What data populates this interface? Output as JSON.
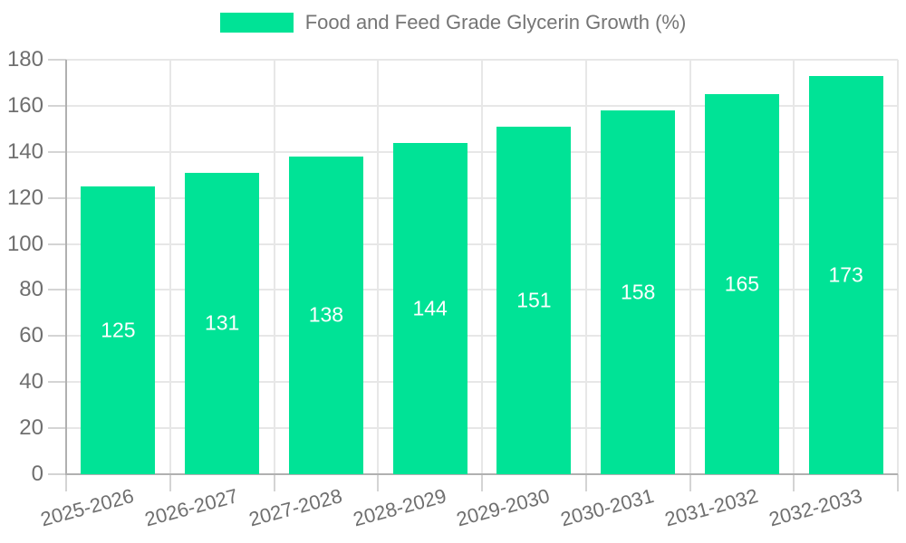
{
  "chart_data": {
    "type": "bar",
    "title": "Food and Feed Grade Glycerin Growth (%)",
    "categories": [
      "2025-2026",
      "2026-2027",
      "2027-2028",
      "2028-2029",
      "2029-2030",
      "2030-2031",
      "2031-2032",
      "2032-2033"
    ],
    "values": [
      125,
      131,
      138,
      144,
      151,
      158,
      165,
      173
    ],
    "xlabel": "",
    "ylabel": "",
    "ylim": [
      0,
      180
    ],
    "ytick_step": 20,
    "ytick_labels": [
      "0",
      "20",
      "40",
      "60",
      "80",
      "100",
      "120",
      "140",
      "160",
      "180"
    ],
    "grid": true,
    "legend_position": "top",
    "colors": {
      "bar": "#00e396",
      "grid": "#e7e7e7",
      "axis": "#b0b0b0",
      "tick": "#d4d4d4",
      "axis_label": "#6f6f6f",
      "value_label": "#ffffff",
      "legend_text": "#757575",
      "background": "#ffffff"
    }
  }
}
